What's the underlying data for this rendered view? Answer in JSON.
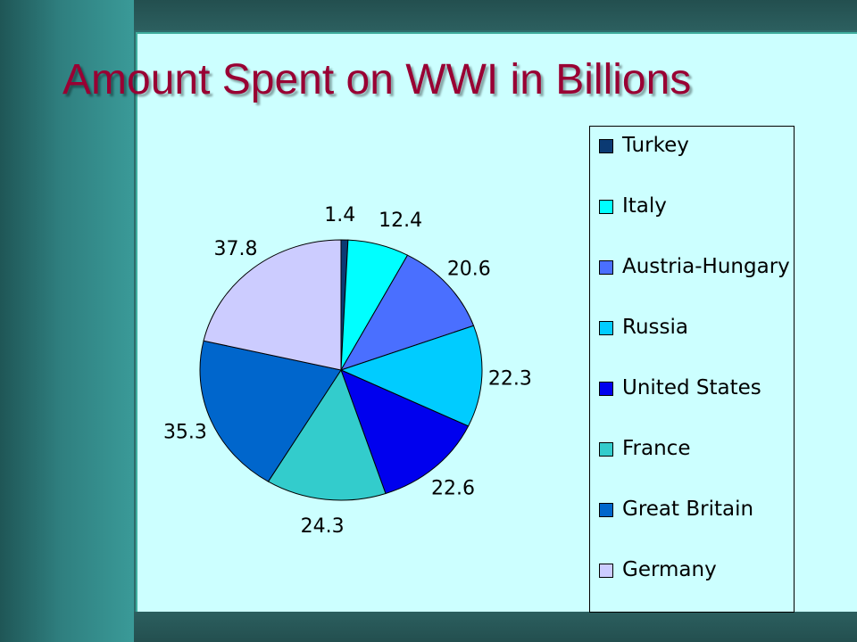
{
  "title": "Amount Spent on WWI in Billions",
  "chart_data": {
    "type": "pie",
    "title": "Amount Spent on WWI in Billions",
    "legend_position": "right",
    "slices": [
      {
        "label": "Turkey",
        "value": 1.4,
        "value_label": "1.4",
        "color": "#0b3a73"
      },
      {
        "label": "Italy",
        "value": 12.4,
        "value_label": "12.4",
        "color": "#00ffff"
      },
      {
        "label": "Austria-Hungary",
        "value": 20.6,
        "value_label": "20.6",
        "color": "#4a6fff"
      },
      {
        "label": "Russia",
        "value": 22.3,
        "value_label": "22.3",
        "color": "#00ccff"
      },
      {
        "label": "United States",
        "value": 22.6,
        "value_label": "22.6",
        "color": "#0000ee"
      },
      {
        "label": "France",
        "value": 24.3,
        "value_label": "24.3",
        "color": "#33cccc"
      },
      {
        "label": "Great Britain",
        "value": 35.3,
        "value_label": "35.3",
        "color": "#0066cc"
      },
      {
        "label": "Germany",
        "value": 37.8,
        "value_label": "37.8",
        "color": "#ccccff"
      }
    ]
  }
}
